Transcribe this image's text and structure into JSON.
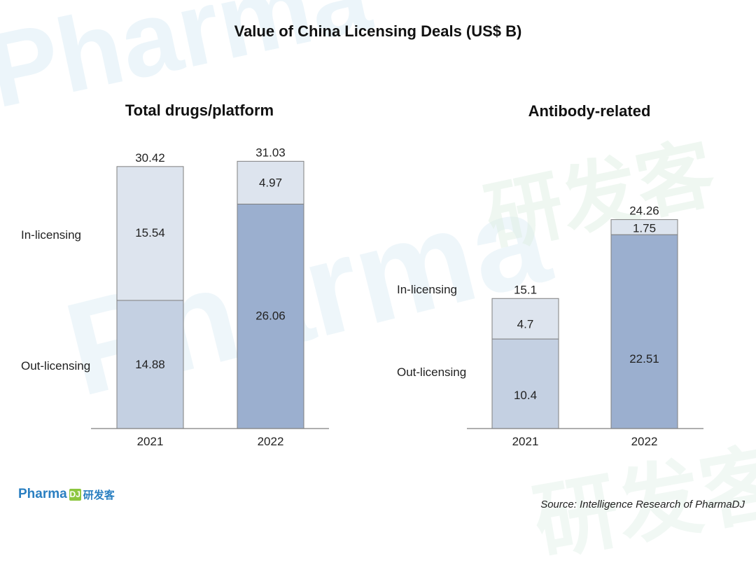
{
  "title": "Value of China Licensing Deals (US$ B)",
  "source": "Source: Intelligence Research of PharmaDJ",
  "logo": {
    "text": "Pharma",
    "box": "DJ",
    "cn": "研发客"
  },
  "watermark": {
    "text": "Pharma",
    "cn": "研发客"
  },
  "colors": {
    "in_licensing": "#dde4ee",
    "out_licensing_2021": "#c4d0e2",
    "out_licensing_2022": "#9bafcf",
    "border": "#7f7f7f"
  },
  "chart_data": [
    {
      "type": "bar",
      "stacked": true,
      "title": "Total drugs/platform",
      "categories": [
        "2021",
        "2022"
      ],
      "series": [
        {
          "name": "Out-licensing",
          "values": [
            14.88,
            26.06
          ]
        },
        {
          "name": "In-licensing",
          "values": [
            15.54,
            4.97
          ]
        }
      ],
      "totals": [
        "30.42",
        "31.03"
      ],
      "labels": {
        "out": [
          "14.88",
          "26.06"
        ],
        "in": [
          "15.54",
          "4.97"
        ]
      }
    },
    {
      "type": "bar",
      "stacked": true,
      "title": "Antibody-related",
      "categories": [
        "2021",
        "2022"
      ],
      "series": [
        {
          "name": "Out-licensing",
          "values": [
            10.4,
            22.51
          ]
        },
        {
          "name": "In-licensing",
          "values": [
            4.7,
            1.75
          ]
        }
      ],
      "totals": [
        "15.1",
        "24.26"
      ],
      "labels": {
        "out": [
          "10.4",
          "22.51"
        ],
        "in": [
          "4.7",
          "1.75"
        ]
      }
    }
  ]
}
